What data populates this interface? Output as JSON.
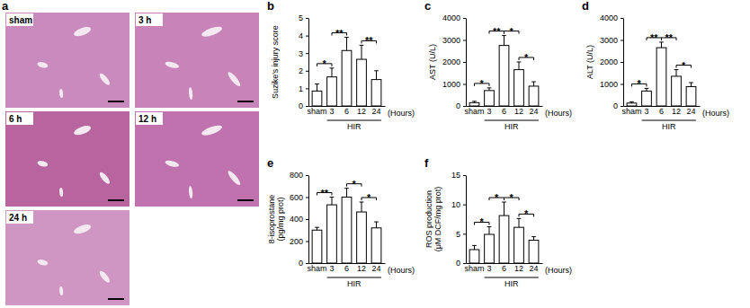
{
  "images": {
    "panel": "a",
    "labels": [
      "sham",
      "3 h",
      "6 h",
      "12 h",
      "24 h"
    ]
  },
  "chart_data": [
    {
      "type": "bar",
      "panel": "b",
      "ylabel": [
        "Suzike's injury score"
      ],
      "xlabel": "(Hours)",
      "group": {
        "label": "HIR",
        "from": 1,
        "to": 4
      },
      "categories": [
        "sham",
        "3",
        "6",
        "12",
        "24"
      ],
      "values": [
        0.85,
        1.65,
        3.15,
        2.65,
        1.5
      ],
      "errors": [
        0.4,
        0.5,
        0.75,
        0.8,
        0.5
      ],
      "color": "#ffffff",
      "ylim": [
        0,
        5
      ],
      "yticks": [
        0,
        1,
        2,
        3,
        4,
        5
      ],
      "significance": [
        {
          "from": 0,
          "to": 1,
          "label": "*"
        },
        {
          "from": 1,
          "to": 2,
          "label": "**"
        },
        {
          "from": 3,
          "to": 4,
          "label": "**"
        }
      ]
    },
    {
      "type": "bar",
      "panel": "c",
      "ylabel": [
        "AST (U/L)"
      ],
      "xlabel": "(Hours)",
      "group": {
        "label": "HIR",
        "from": 1,
        "to": 4
      },
      "categories": [
        "sham",
        "3",
        "6",
        "12",
        "24"
      ],
      "values": [
        150,
        700,
        2750,
        1650,
        900
      ],
      "errors": [
        60,
        120,
        450,
        350,
        200
      ],
      "color": "#ffffff",
      "ylim": [
        0,
        4000
      ],
      "yticks": [
        0,
        1000,
        2000,
        3000,
        4000
      ],
      "significance": [
        {
          "from": 0,
          "to": 1,
          "label": "*"
        },
        {
          "from": 1,
          "to": 2,
          "label": "**"
        },
        {
          "from": 2,
          "to": 3,
          "label": "*"
        },
        {
          "from": 3,
          "to": 4,
          "label": "*"
        }
      ]
    },
    {
      "type": "bar",
      "panel": "d",
      "ylabel": [
        "ALT (U/L)"
      ],
      "xlabel": "(Hours)",
      "group": {
        "label": "HIR",
        "from": 1,
        "to": 4
      },
      "categories": [
        "sham",
        "3",
        "6",
        "12",
        "24"
      ],
      "values": [
        130,
        680,
        2650,
        1350,
        880
      ],
      "errors": [
        60,
        120,
        250,
        300,
        180
      ],
      "color": "#ffffff",
      "ylim": [
        0,
        4000
      ],
      "yticks": [
        0,
        1000,
        2000,
        3000,
        4000
      ],
      "significance": [
        {
          "from": 0,
          "to": 1,
          "label": "*"
        },
        {
          "from": 1,
          "to": 2,
          "label": "**"
        },
        {
          "from": 2,
          "to": 3,
          "label": "**"
        },
        {
          "from": 3,
          "to": 4,
          "label": "*"
        }
      ]
    },
    {
      "type": "bar",
      "panel": "e",
      "ylabel": [
        "8-isoprostane",
        "(pg/mg prot)"
      ],
      "xlabel": "(Hours)",
      "group": {
        "label": "HIR",
        "from": 1,
        "to": 4
      },
      "categories": [
        "sham",
        "3",
        "6",
        "12",
        "24"
      ],
      "values": [
        300,
        530,
        600,
        465,
        320
      ],
      "errors": [
        25,
        70,
        80,
        90,
        55
      ],
      "color": "#ffffff",
      "ylim": [
        0,
        800
      ],
      "yticks": [
        0,
        200,
        400,
        600,
        800
      ],
      "significance": [
        {
          "from": 0,
          "to": 1,
          "label": "**"
        },
        {
          "from": 2,
          "to": 3,
          "label": "*"
        },
        {
          "from": 3,
          "to": 4,
          "label": "*"
        }
      ]
    },
    {
      "type": "bar",
      "panel": "f",
      "ylabel": [
        "ROS production",
        "(μM DCF/mg prot)"
      ],
      "xlabel": "(Hours)",
      "group": {
        "label": "HIR",
        "from": 1,
        "to": 4
      },
      "categories": [
        "sham",
        "3",
        "6",
        "12",
        "24"
      ],
      "values": [
        2.3,
        4.9,
        8.1,
        6.1,
        3.9
      ],
      "errors": [
        0.7,
        1.3,
        2.3,
        1.5,
        0.6
      ],
      "color": "#ffffff",
      "ylim": [
        0,
        15
      ],
      "yticks": [
        0,
        5,
        10,
        15
      ],
      "significance": [
        {
          "from": 0,
          "to": 1,
          "label": "*"
        },
        {
          "from": 1,
          "to": 2,
          "label": "*"
        },
        {
          "from": 2,
          "to": 3,
          "label": "*"
        },
        {
          "from": 3,
          "to": 4,
          "label": "*"
        }
      ]
    }
  ]
}
